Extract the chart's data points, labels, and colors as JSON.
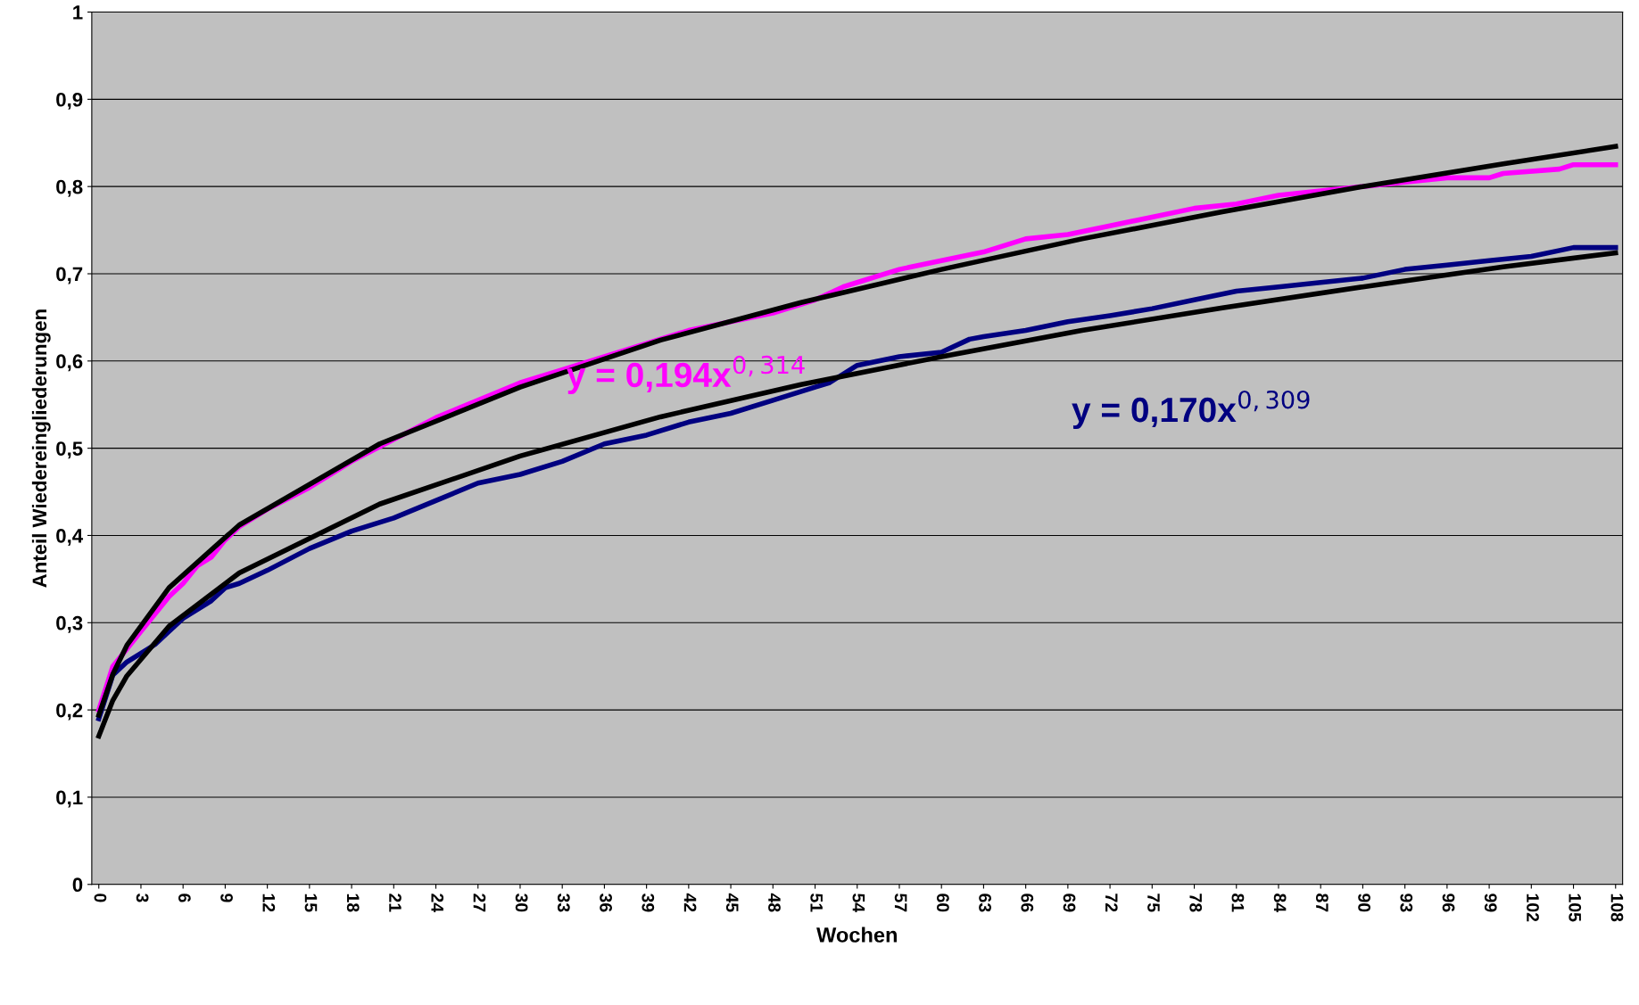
{
  "chart_data": {
    "type": "line",
    "xlabel": "Wochen",
    "ylabel": "Anteil Wiedereingliederungen",
    "xlim": [
      -0.5,
      108.5
    ],
    "xticks": [
      0,
      3,
      6,
      9,
      12,
      15,
      18,
      21,
      24,
      27,
      30,
      33,
      36,
      39,
      42,
      45,
      48,
      51,
      54,
      57,
      60,
      63,
      66,
      69,
      72,
      75,
      78,
      81,
      84,
      87,
      90,
      93,
      96,
      99,
      102,
      105,
      108
    ],
    "ylim": [
      0,
      1
    ],
    "yticks": [
      {
        "value": 0,
        "label": "0"
      },
      {
        "value": 0.1,
        "label": "0,1"
      },
      {
        "value": 0.2,
        "label": "0,2"
      },
      {
        "value": 0.3,
        "label": "0,3"
      },
      {
        "value": 0.4,
        "label": "0,4"
      },
      {
        "value": 0.5,
        "label": "0,5"
      },
      {
        "value": 0.6,
        "label": "0,6"
      },
      {
        "value": 0.7,
        "label": "0,7"
      },
      {
        "value": 0.8,
        "label": "0,8"
      },
      {
        "value": 0.9,
        "label": "0,9"
      },
      {
        "value": 1,
        "label": "1"
      }
    ],
    "grid": "y",
    "legend": false,
    "marker": "none",
    "line_style": "solid",
    "series": [
      {
        "color": "#ff00ff",
        "x": [
          0,
          1,
          2,
          3,
          4,
          5,
          6,
          7,
          8,
          9,
          10,
          12,
          15,
          18,
          21,
          24,
          27,
          30,
          33,
          36,
          39,
          42,
          45,
          48,
          51,
          53,
          54,
          57,
          60,
          63,
          66,
          69,
          72,
          75,
          78,
          81,
          84,
          87,
          90,
          93,
          96,
          99,
          100,
          104,
          105,
          108
        ],
        "values": [
          0.2,
          0.25,
          0.27,
          0.29,
          0.31,
          0.33,
          0.345,
          0.365,
          0.375,
          0.395,
          0.41,
          0.43,
          0.455,
          0.485,
          0.51,
          0.535,
          0.555,
          0.575,
          0.59,
          0.605,
          0.62,
          0.635,
          0.645,
          0.655,
          0.67,
          0.685,
          0.69,
          0.705,
          0.715,
          0.725,
          0.74,
          0.745,
          0.755,
          0.765,
          0.775,
          0.78,
          0.79,
          0.795,
          0.8,
          0.805,
          0.81,
          0.81,
          0.815,
          0.82,
          0.825,
          0.825
        ]
      },
      {
        "color": "#000080",
        "x": [
          0,
          1,
          2,
          3,
          4,
          5,
          6,
          8,
          9,
          10,
          12,
          15,
          18,
          21,
          24,
          27,
          30,
          33,
          36,
          39,
          42,
          45,
          48,
          51,
          52,
          53,
          54,
          57,
          60,
          62,
          63,
          66,
          69,
          72,
          75,
          78,
          81,
          84,
          87,
          90,
          93,
          96,
          99,
          102,
          105,
          108
        ],
        "values": [
          0.19,
          0.24,
          0.255,
          0.265,
          0.275,
          0.29,
          0.305,
          0.325,
          0.34,
          0.345,
          0.36,
          0.385,
          0.405,
          0.42,
          0.44,
          0.46,
          0.47,
          0.485,
          0.505,
          0.515,
          0.53,
          0.54,
          0.555,
          0.57,
          0.575,
          0.585,
          0.595,
          0.605,
          0.61,
          0.625,
          0.628,
          0.635,
          0.645,
          0.652,
          0.66,
          0.67,
          0.68,
          0.685,
          0.69,
          0.695,
          0.705,
          0.71,
          0.715,
          0.72,
          0.73,
          0.73
        ]
      },
      {
        "color": "#000000",
        "x": [
          0,
          1,
          2,
          5,
          10,
          20,
          30,
          40,
          50,
          60,
          70,
          80,
          90,
          100,
          108
        ],
        "values": [
          0.194,
          0.241,
          0.274,
          0.34,
          0.412,
          0.505,
          0.57,
          0.624,
          0.667,
          0.705,
          0.74,
          0.771,
          0.8,
          0.826,
          0.846
        ]
      },
      {
        "color": "#000000",
        "x": [
          0,
          1,
          2,
          5,
          10,
          20,
          30,
          40,
          50,
          60,
          70,
          80,
          90,
          100,
          108
        ],
        "values": [
          0.17,
          0.211,
          0.239,
          0.296,
          0.357,
          0.436,
          0.491,
          0.536,
          0.573,
          0.605,
          0.635,
          0.661,
          0.685,
          0.708,
          0.724
        ]
      }
    ],
    "annotations": [
      "y = 0,194x$^{0,314}$",
      "y = 0,170x$^{0,309}$"
    ]
  }
}
